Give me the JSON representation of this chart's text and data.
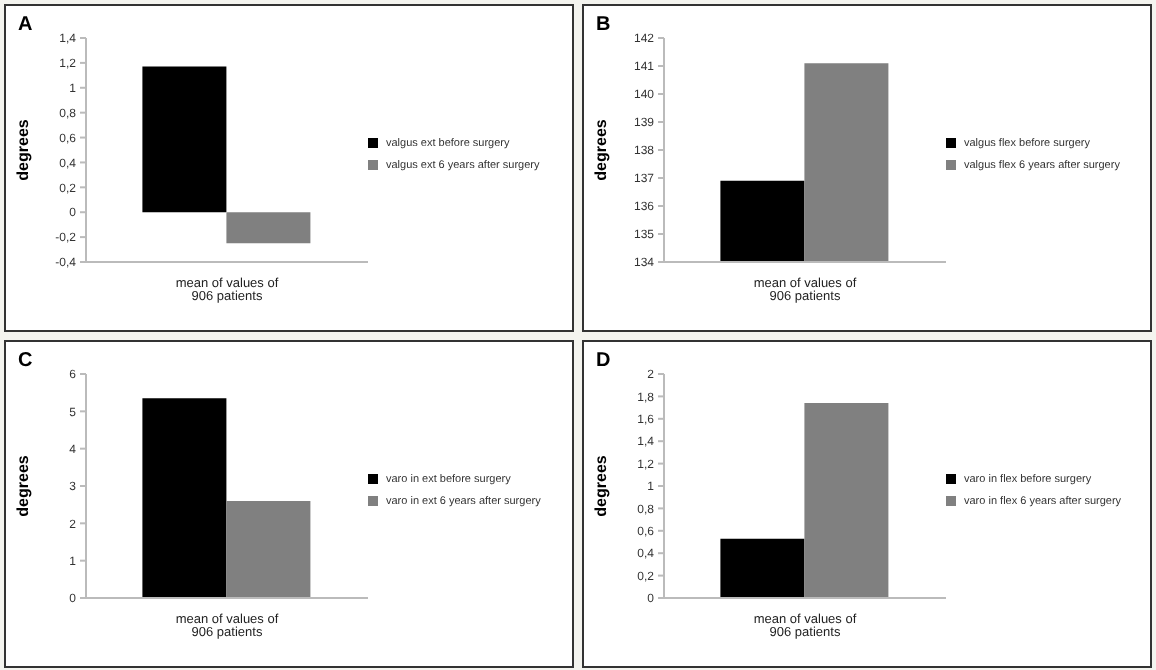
{
  "chart_data": [
    {
      "type": "bar",
      "title": "A",
      "ylabel": "degrees",
      "categories": [
        "mean of values of 906 patients"
      ],
      "legend": "right",
      "series": [
        {
          "name": "valgus ext before surgery",
          "color": "#000000",
          "values": [
            1.17
          ]
        },
        {
          "name": "valgus ext 6 years after surgery",
          "color": "#808080",
          "values": [
            -0.25
          ]
        }
      ],
      "ylim": [
        -0.4,
        1.4
      ],
      "yticks": [
        {
          "value": -0.4,
          "label": "-0,4"
        },
        {
          "value": -0.2,
          "label": "-0,2"
        },
        0,
        {
          "value": 0.2,
          "label": "0,2"
        },
        {
          "value": 0.4,
          "label": "0,4"
        },
        {
          "value": 0.6,
          "label": "0,6"
        },
        {
          "value": 0.8,
          "label": "0,8"
        },
        1,
        {
          "value": 1.2,
          "label": "1,2"
        },
        {
          "value": 1.4,
          "label": "1,4"
        }
      ],
      "grid": false
    },
    {
      "type": "bar",
      "title": "B",
      "ylabel": "degrees",
      "categories": [
        "mean of values of 906 patients"
      ],
      "legend": "right",
      "series": [
        {
          "name": "valgus flex before surgery",
          "color": "#000000",
          "values": [
            136.9
          ]
        },
        {
          "name": "valgus flex 6 years after surgery",
          "color": "#808080",
          "values": [
            141.1
          ]
        }
      ],
      "ylim": [
        134,
        142
      ],
      "yticks": [
        134,
        135,
        136,
        137,
        138,
        139,
        140,
        141,
        142
      ],
      "grid": false
    },
    {
      "type": "bar",
      "title": "C",
      "ylabel": "degrees",
      "categories": [
        "mean of values of 906 patients"
      ],
      "legend": "right",
      "series": [
        {
          "name": "varo in ext before surgery",
          "color": "#000000",
          "values": [
            5.35
          ]
        },
        {
          "name": "varo in ext 6 years after surgery",
          "color": "#808080",
          "values": [
            2.6
          ]
        }
      ],
      "ylim": [
        0,
        6
      ],
      "yticks": [
        0,
        1,
        2,
        3,
        4,
        5,
        6
      ],
      "grid": false
    },
    {
      "type": "bar",
      "title": "D",
      "ylabel": "degrees",
      "categories": [
        "mean of values of 906 patients"
      ],
      "legend": "right",
      "series": [
        {
          "name": "varo in flex before surgery",
          "color": "#000000",
          "values": [
            0.53
          ]
        },
        {
          "name": "varo in flex 6 years after surgery",
          "color": "#808080",
          "values": [
            1.74
          ]
        }
      ],
      "ylim": [
        0,
        2
      ],
      "yticks": [
        0,
        {
          "value": 0.2,
          "label": "0,2"
        },
        {
          "value": 0.4,
          "label": "0,4"
        },
        {
          "value": 0.6,
          "label": "0,6"
        },
        {
          "value": 0.8,
          "label": "0,8"
        },
        1,
        {
          "value": 1.2,
          "label": "1,2"
        },
        {
          "value": 1.4,
          "label": "1,4"
        },
        {
          "value": 1.6,
          "label": "1,6"
        },
        {
          "value": 1.8,
          "label": "1,8"
        },
        2
      ],
      "grid": false
    }
  ]
}
